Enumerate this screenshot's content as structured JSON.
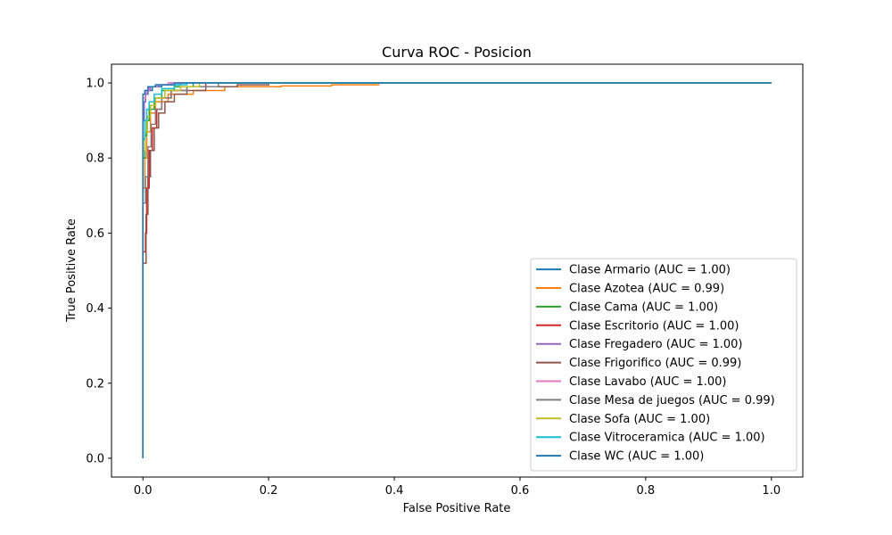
{
  "chart_data": {
    "type": "line",
    "title": "Curva ROC - Posicion",
    "xlabel": "False Positive Rate",
    "ylabel": "True Positive Rate",
    "xlim": [
      -0.05,
      1.05
    ],
    "ylim": [
      -0.05,
      1.05
    ],
    "xticks": [
      0.0,
      0.2,
      0.4,
      0.6,
      0.8,
      1.0
    ],
    "yticks": [
      0.0,
      0.2,
      0.4,
      0.6,
      0.8,
      1.0
    ],
    "xtick_labels": [
      "0.0",
      "0.2",
      "0.4",
      "0.6",
      "0.8",
      "1.0"
    ],
    "ytick_labels": [
      "0.0",
      "0.2",
      "0.4",
      "0.6",
      "0.8",
      "1.0"
    ],
    "grid": false,
    "legend_position": "lower-right",
    "series": [
      {
        "name": "Clase Armario (AUC = 1.00)",
        "color": "#1f77b4",
        "points": [
          [
            0,
            0
          ],
          [
            0,
            0.9
          ],
          [
            0.002,
            0.95
          ],
          [
            0.004,
            0.97
          ],
          [
            0.008,
            0.98
          ],
          [
            0.015,
            0.99
          ],
          [
            0.03,
            0.995
          ],
          [
            0.06,
            1.0
          ],
          [
            1,
            1
          ]
        ]
      },
      {
        "name": "Clase Azotea (AUC = 0.99)",
        "color": "#ff7f0e",
        "points": [
          [
            0,
            0
          ],
          [
            0,
            0.72
          ],
          [
            0.003,
            0.8
          ],
          [
            0.006,
            0.87
          ],
          [
            0.012,
            0.92
          ],
          [
            0.02,
            0.95
          ],
          [
            0.04,
            0.97
          ],
          [
            0.08,
            0.98
          ],
          [
            0.13,
            0.99
          ],
          [
            0.22,
            0.992
          ],
          [
            0.3,
            0.995
          ],
          [
            0.375,
            0.995
          ],
          [
            0.375,
            1.0
          ],
          [
            1,
            1
          ]
        ]
      },
      {
        "name": "Clase Cama (AUC = 1.00)",
        "color": "#2ca02c",
        "points": [
          [
            0,
            0
          ],
          [
            0,
            0.8
          ],
          [
            0.003,
            0.86
          ],
          [
            0.006,
            0.9
          ],
          [
            0.01,
            0.93
          ],
          [
            0.018,
            0.96
          ],
          [
            0.03,
            0.98
          ],
          [
            0.05,
            0.99
          ],
          [
            0.08,
            1.0
          ],
          [
            1,
            1
          ]
        ]
      },
      {
        "name": "Clase Escritorio (AUC = 1.00)",
        "color": "#d62728",
        "points": [
          [
            0,
            0
          ],
          [
            0,
            0.55
          ],
          [
            0.004,
            0.6
          ],
          [
            0.006,
            0.72
          ],
          [
            0.01,
            0.82
          ],
          [
            0.015,
            0.88
          ],
          [
            0.022,
            0.93
          ],
          [
            0.03,
            0.96
          ],
          [
            0.045,
            0.98
          ],
          [
            0.07,
            0.99
          ],
          [
            0.1,
            1.0
          ],
          [
            1,
            1
          ]
        ]
      },
      {
        "name": "Clase Fregadero (AUC = 1.00)",
        "color": "#9467bd",
        "points": [
          [
            0,
            0
          ],
          [
            0,
            0.9
          ],
          [
            0.002,
            0.95
          ],
          [
            0.004,
            0.97
          ],
          [
            0.007,
            0.98
          ],
          [
            0.012,
            0.99
          ],
          [
            0.025,
            0.995
          ],
          [
            0.045,
            1.0
          ],
          [
            1,
            1
          ]
        ]
      },
      {
        "name": "Clase Frigorifico (AUC = 0.99)",
        "color": "#8c564b",
        "points": [
          [
            0,
            0
          ],
          [
            0,
            0.52
          ],
          [
            0.003,
            0.52
          ],
          [
            0.005,
            0.65
          ],
          [
            0.008,
            0.75
          ],
          [
            0.012,
            0.82
          ],
          [
            0.018,
            0.88
          ],
          [
            0.025,
            0.92
          ],
          [
            0.035,
            0.95
          ],
          [
            0.05,
            0.97
          ],
          [
            0.07,
            0.98
          ],
          [
            0.1,
            0.99
          ],
          [
            0.15,
            0.995
          ],
          [
            0.2,
            1.0
          ],
          [
            1,
            1
          ]
        ]
      },
      {
        "name": "Clase Lavabo (AUC = 1.00)",
        "color": "#e377c2",
        "points": [
          [
            0,
            0
          ],
          [
            0,
            0.96
          ],
          [
            0.004,
            0.98
          ],
          [
            0.01,
            0.99
          ],
          [
            0.02,
            0.995
          ],
          [
            0.04,
            1.0
          ],
          [
            1,
            1
          ]
        ]
      },
      {
        "name": "Clase Mesa de juegos (AUC = 0.99)",
        "color": "#7f7f7f",
        "points": [
          [
            0,
            0
          ],
          [
            0,
            0.68
          ],
          [
            0.004,
            0.75
          ],
          [
            0.008,
            0.83
          ],
          [
            0.013,
            0.89
          ],
          [
            0.02,
            0.93
          ],
          [
            0.03,
            0.96
          ],
          [
            0.045,
            0.98
          ],
          [
            0.07,
            0.99
          ],
          [
            0.12,
            1.0
          ],
          [
            1,
            1
          ]
        ]
      },
      {
        "name": "Clase Sofa (AUC = 1.00)",
        "color": "#bcbd22",
        "points": [
          [
            0,
            0
          ],
          [
            0,
            0.82
          ],
          [
            0.003,
            0.87
          ],
          [
            0.007,
            0.91
          ],
          [
            0.012,
            0.94
          ],
          [
            0.02,
            0.96
          ],
          [
            0.035,
            0.98
          ],
          [
            0.06,
            0.99
          ],
          [
            0.09,
            1.0
          ],
          [
            1,
            1
          ]
        ]
      },
      {
        "name": "Clase Vitroceramica (AUC = 1.00)",
        "color": "#17becf",
        "points": [
          [
            0,
            0
          ],
          [
            0,
            0.85
          ],
          [
            0.003,
            0.9
          ],
          [
            0.006,
            0.93
          ],
          [
            0.01,
            0.95
          ],
          [
            0.018,
            0.97
          ],
          [
            0.03,
            0.985
          ],
          [
            0.05,
            0.995
          ],
          [
            0.07,
            1.0
          ],
          [
            1,
            1
          ]
        ]
      },
      {
        "name": "Clase WC (AUC = 1.00)",
        "color": "#1f77b4",
        "points": [
          [
            0,
            0
          ],
          [
            0,
            0.97
          ],
          [
            0.003,
            0.98
          ],
          [
            0.008,
            0.99
          ],
          [
            0.02,
            0.995
          ],
          [
            0.05,
            1.0
          ],
          [
            1,
            1
          ]
        ]
      }
    ]
  }
}
